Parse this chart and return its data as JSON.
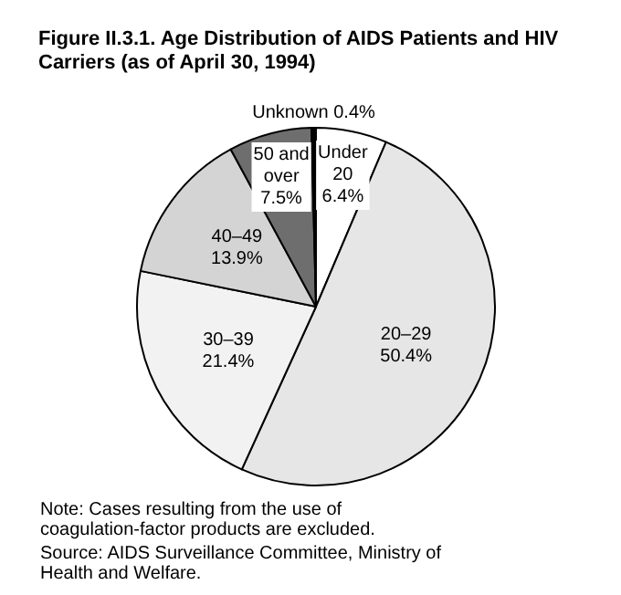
{
  "chart_data": {
    "type": "pie",
    "title": "Figure II.3.1. Age Distribution of AIDS Patients and HIV Carriers (as of April 30, 1994)",
    "categories": [
      "Under 20",
      "20–29",
      "30–39",
      "40–49",
      "50 and over",
      "Unknown"
    ],
    "values": [
      6.4,
      50.4,
      21.4,
      13.9,
      7.5,
      0.4
    ],
    "value_labels": [
      "6.4%",
      "50.4%",
      "21.4%",
      "13.9%",
      "7.5%",
      "0.4%"
    ],
    "colors": [
      "#ffffff",
      "#e6e6e6",
      "#f2f2f2",
      "#d4d4d4",
      "#6e6e6e",
      "#000000"
    ],
    "annotations": [
      "Note: Cases resulting from the use of coagulation-factor products are excluded.",
      "Source: AIDS Surveillance Committee, Ministry of Health and Welfare."
    ]
  }
}
